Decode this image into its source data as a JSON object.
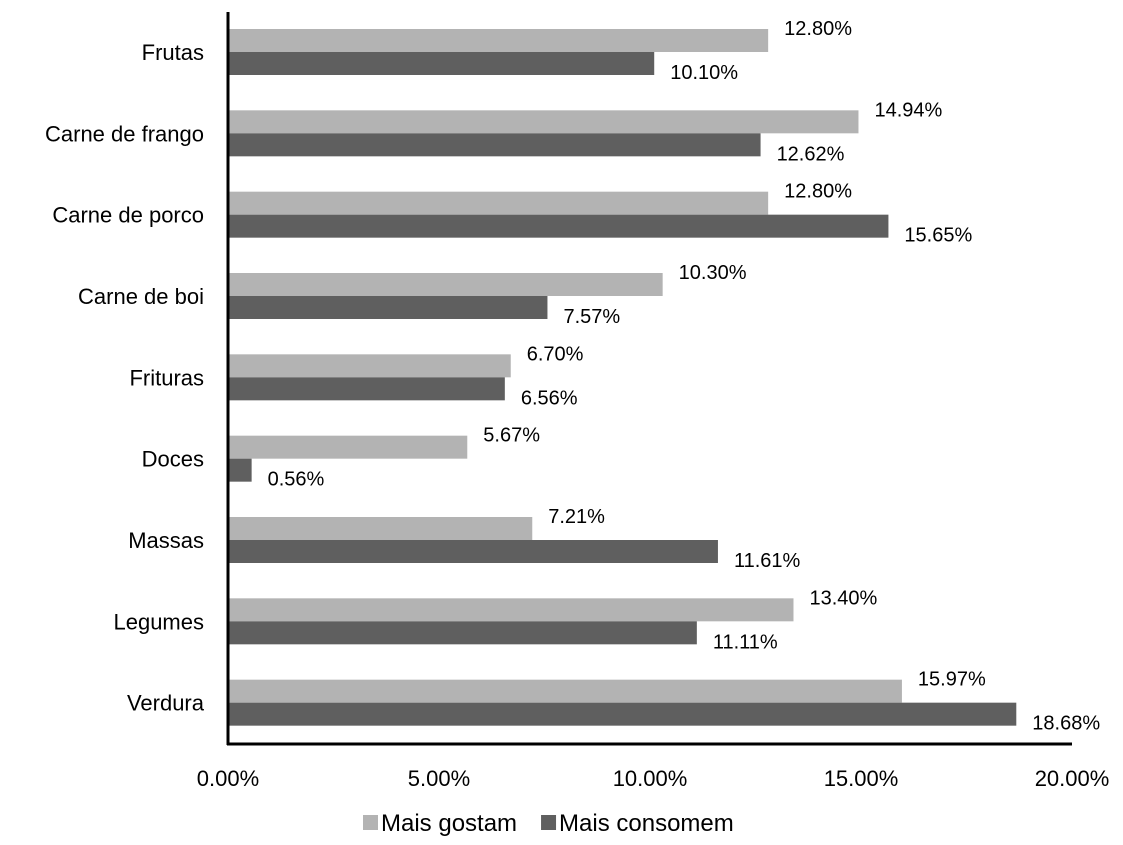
{
  "chart_data": {
    "type": "bar",
    "orientation": "horizontal",
    "title": "",
    "xlabel": "",
    "ylabel": "",
    "categories": [
      "Frutas",
      "Carne de frango",
      "Carne de porco",
      "Carne de boi",
      "Frituras",
      "Doces",
      "Massas",
      "Legumes",
      "Verdura"
    ],
    "series": [
      {
        "name": "Mais gostam",
        "color": "#b3b3b3",
        "values": [
          12.8,
          14.94,
          12.8,
          10.3,
          6.7,
          5.67,
          7.21,
          13.4,
          15.97
        ],
        "labels": [
          "12.80%",
          "14.94%",
          "12.80%",
          "10.30%",
          "6.70%",
          "5.67%",
          "7.21%",
          "13.40%",
          "15.97%"
        ]
      },
      {
        "name": "Mais consomem",
        "color": "#5f5f5f",
        "values": [
          10.1,
          12.62,
          15.65,
          7.57,
          6.56,
          0.56,
          11.61,
          11.11,
          18.68
        ],
        "labels": [
          "10.10%",
          "12.62%",
          "15.65%",
          "7.57%",
          "6.56%",
          "0.56%",
          "11.61%",
          "11.11%",
          "18.68%"
        ]
      }
    ],
    "xlim": [
      0,
      20
    ],
    "xticks": [
      0,
      5,
      10,
      15,
      20
    ],
    "xtick_labels": [
      "0.00%",
      "5.00%",
      "10.00%",
      "15.00%",
      "20.00%"
    ],
    "grid": false,
    "legend": {
      "position": "bottom",
      "entries": [
        "Mais gostam",
        "Mais consomem"
      ]
    }
  }
}
